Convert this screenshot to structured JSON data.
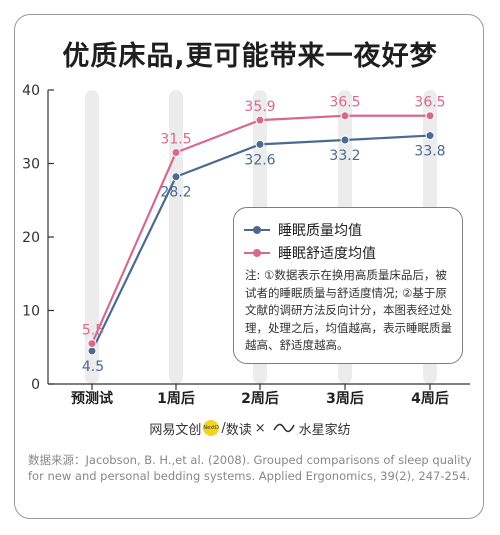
{
  "title": "优质床品,更可能带来一夜好梦",
  "chart_data": {
    "type": "line",
    "categories": [
      "预测试",
      "1周后",
      "2周后",
      "3周后",
      "4周后"
    ],
    "series": [
      {
        "name": "睡眠质量均值",
        "values": [
          4.5,
          28.2,
          32.6,
          33.2,
          33.8
        ],
        "color": "#4a6a91"
      },
      {
        "name": "睡眠舒适度均值",
        "values": [
          5.5,
          31.5,
          35.9,
          36.5,
          36.5
        ],
        "color": "#d9698c"
      }
    ],
    "y_ticks": [
      "0",
      "10",
      "20",
      "30",
      "40"
    ],
    "ylim": [
      0,
      40
    ],
    "legend_position": "right",
    "column_band_color": "#ececec"
  },
  "note": "注: ①数据表示在换用高质量床品后，被试者的睡眠质量与舒适度情况; ②基于原文献的调研方法反向计分，本图表经过处理，处理之后，均值越高，表示睡眠质量越高、舒适度越高。",
  "credits": {
    "brand1": "网易文创",
    "badge": "NextData",
    "separator": "/",
    "brand2": "数读",
    "cross": "×",
    "brand3": "水星家纺"
  },
  "source": "数据来源：Jacobson, B. H.,et al. (2008). Grouped comparisons of sleep quality for new and personal bedding systems. Applied Ergonomics, 39(2), 247-254."
}
